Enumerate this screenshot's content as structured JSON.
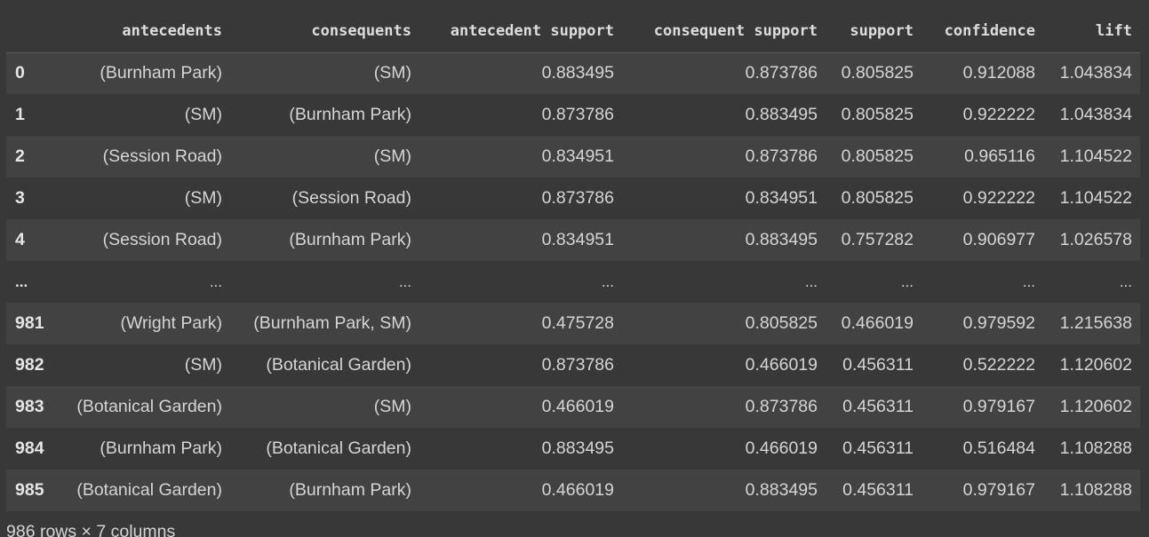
{
  "table": {
    "columns": [
      "antecedents",
      "consequents",
      "antecedent support",
      "consequent support",
      "support",
      "confidence",
      "lift"
    ],
    "rows": [
      {
        "index": "0",
        "cells": [
          "(Burnham Park)",
          "(SM)",
          "0.883495",
          "0.873786",
          "0.805825",
          "0.912088",
          "1.043834"
        ]
      },
      {
        "index": "1",
        "cells": [
          "(SM)",
          "(Burnham Park)",
          "0.873786",
          "0.883495",
          "0.805825",
          "0.922222",
          "1.043834"
        ]
      },
      {
        "index": "2",
        "cells": [
          "(Session Road)",
          "(SM)",
          "0.834951",
          "0.873786",
          "0.805825",
          "0.965116",
          "1.104522"
        ]
      },
      {
        "index": "3",
        "cells": [
          "(SM)",
          "(Session Road)",
          "0.873786",
          "0.834951",
          "0.805825",
          "0.922222",
          "1.104522"
        ]
      },
      {
        "index": "4",
        "cells": [
          "(Session Road)",
          "(Burnham Park)",
          "0.834951",
          "0.883495",
          "0.757282",
          "0.906977",
          "1.026578"
        ]
      },
      {
        "index": "...",
        "cells": [
          "...",
          "...",
          "...",
          "...",
          "...",
          "...",
          "..."
        ]
      },
      {
        "index": "981",
        "cells": [
          "(Wright Park)",
          "(Burnham Park, SM)",
          "0.475728",
          "0.805825",
          "0.466019",
          "0.979592",
          "1.215638"
        ]
      },
      {
        "index": "982",
        "cells": [
          "(SM)",
          "(Botanical Garden)",
          "0.873786",
          "0.466019",
          "0.456311",
          "0.522222",
          "1.120602"
        ]
      },
      {
        "index": "983",
        "cells": [
          "(Botanical Garden)",
          "(SM)",
          "0.466019",
          "0.873786",
          "0.456311",
          "0.979167",
          "1.120602"
        ]
      },
      {
        "index": "984",
        "cells": [
          "(Burnham Park)",
          "(Botanical Garden)",
          "0.883495",
          "0.466019",
          "0.456311",
          "0.516484",
          "1.108288"
        ]
      },
      {
        "index": "985",
        "cells": [
          "(Botanical Garden)",
          "(Burnham Park)",
          "0.466019",
          "0.883495",
          "0.456311",
          "0.979167",
          "1.108288"
        ]
      }
    ]
  },
  "footer": "986 rows × 7 columns"
}
